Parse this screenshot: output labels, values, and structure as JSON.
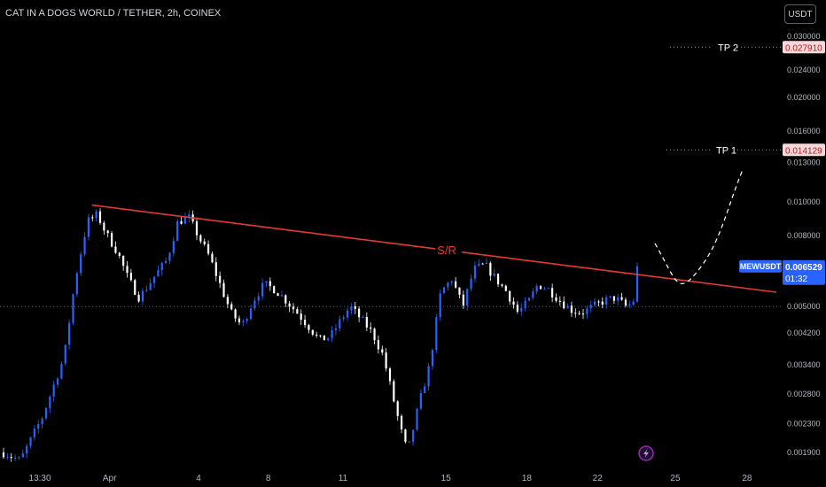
{
  "header": {
    "title": "CAT IN A DOGS WORLD / TETHER, 2h, COINEX",
    "currency_button": "USDT"
  },
  "price_axis": {
    "ticks": [
      "0.030000",
      "0.024000",
      "0.020000",
      "0.016000",
      "0.013000",
      "0.010000",
      "0.008000",
      "0.005000",
      "0.004200",
      "0.003400",
      "0.002800",
      "0.002300",
      "0.001900"
    ]
  },
  "time_axis": {
    "ticks": [
      "13:30",
      "Apr",
      "4",
      "8",
      "11",
      "15",
      "18",
      "22",
      "25",
      "28"
    ]
  },
  "annotations": {
    "sr_label": "S/R",
    "tp1_label": "TP 1",
    "tp1_value": "0.014129",
    "tp2_label": "TP 2",
    "tp2_value": "0.027910"
  },
  "price_badge": {
    "symbol": "MEWUSDT",
    "value": "0.006529",
    "countdown": "01:32"
  },
  "colors": {
    "up": "#2962ff",
    "down": "#ffffff",
    "sr_line": "#e53935",
    "badge": "#2962ff",
    "tp_badge_bg": "#f8d7da",
    "tp_badge_text": "#b71c1c"
  },
  "icons": {
    "replay": "lightning-icon"
  },
  "chart_data": {
    "type": "candlestick",
    "symbol": "MEWUSDT",
    "interval": "2h",
    "scale": "log",
    "ylim": [
      0.0017,
      0.032
    ],
    "last_price": 0.006529,
    "series": [
      {
        "anchors_close": [
          [
            0.0,
            0.0019
          ],
          [
            1.5,
            0.0018
          ],
          [
            3.5,
            0.0024
          ],
          [
            5.5,
            0.0036
          ],
          [
            6.5,
            0.006
          ],
          [
            7.6,
            0.0088
          ],
          [
            8.5,
            0.0092
          ],
          [
            9.3,
            0.0081
          ],
          [
            10.3,
            0.0072
          ],
          [
            11.3,
            0.006
          ],
          [
            12.3,
            0.0053
          ],
          [
            13.8,
            0.0062
          ],
          [
            14.8,
            0.0068
          ],
          [
            15.8,
            0.0088
          ],
          [
            16.8,
            0.009
          ],
          [
            17.8,
            0.0078
          ],
          [
            18.6,
            0.007
          ],
          [
            19.6,
            0.0058
          ],
          [
            20.6,
            0.0048
          ],
          [
            21.6,
            0.0044
          ],
          [
            22.6,
            0.0052
          ],
          [
            23.6,
            0.0058
          ],
          [
            24.6,
            0.0056
          ],
          [
            25.6,
            0.0052
          ],
          [
            26.6,
            0.0048
          ],
          [
            27.6,
            0.0044
          ],
          [
            28.6,
            0.004
          ],
          [
            29.6,
            0.0041
          ],
          [
            30.6,
            0.0046
          ],
          [
            31.4,
            0.005
          ],
          [
            32.4,
            0.0046
          ],
          [
            33.4,
            0.0042
          ],
          [
            34.4,
            0.0036
          ],
          [
            35.2,
            0.0028
          ],
          [
            36.0,
            0.0022
          ],
          [
            36.6,
            0.0019
          ],
          [
            37.6,
            0.0026
          ],
          [
            38.6,
            0.0034
          ],
          [
            39.6,
            0.0055
          ],
          [
            40.6,
            0.006
          ],
          [
            41.6,
            0.005
          ],
          [
            42.6,
            0.0064
          ],
          [
            43.6,
            0.0066
          ],
          [
            44.6,
            0.006
          ],
          [
            45.6,
            0.0055
          ],
          [
            46.6,
            0.0048
          ],
          [
            47.6,
            0.0052
          ],
          [
            48.4,
            0.0058
          ],
          [
            49.4,
            0.0056
          ],
          [
            50.4,
            0.0052
          ],
          [
            51.4,
            0.0049
          ],
          [
            52.4,
            0.0048
          ],
          [
            53.4,
            0.005
          ],
          [
            54.4,
            0.0052
          ],
          [
            55.4,
            0.0053
          ],
          [
            56.4,
            0.005
          ],
          [
            57.0,
            0.0051
          ],
          [
            57.6,
            0.0065
          ]
        ]
      }
    ],
    "sr_line": {
      "from": [
        8.0,
        0.0098
      ],
      "to": [
        70.0,
        0.0055
      ]
    },
    "projection_path": [
      [
        59.0,
        0.0076
      ],
      [
        61.0,
        0.0059
      ],
      [
        63.0,
        0.0064
      ],
      [
        65.5,
        0.0096
      ],
      [
        67.0,
        0.0125
      ]
    ],
    "targets": [
      {
        "name": "TP 1",
        "price": 0.014129
      },
      {
        "name": "TP 2",
        "price": 0.02791
      }
    ],
    "xlim": [
      0,
      70
    ],
    "grid": false
  }
}
